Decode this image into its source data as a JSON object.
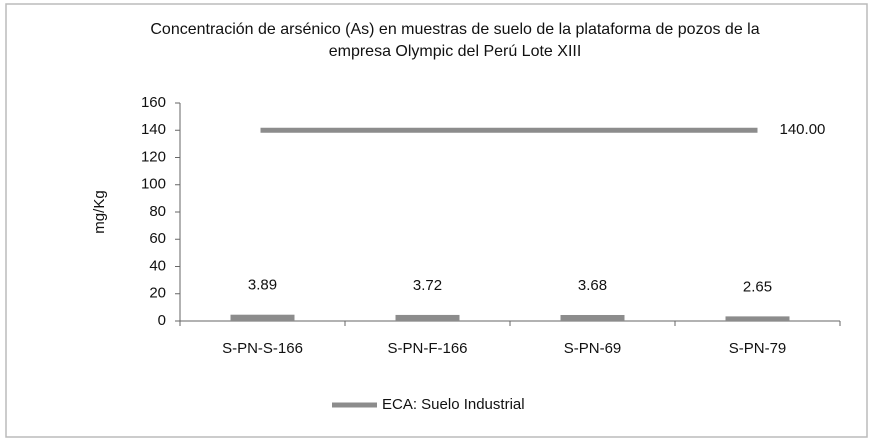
{
  "chart_data": {
    "type": "bar",
    "title": [
      "Concentración de arsénico (As) en muestras de suelo de la plataforma de pozos de la",
      "empresa Olympic del Perú Lote XIII"
    ],
    "y_label": "mg/Kg",
    "categories": [
      "S-PN-S-166",
      "S-PN-F-166",
      "S-PN-69",
      "S-PN-79"
    ],
    "series": [
      {
        "type": "bar",
        "color": "#8c8c8c",
        "values": [
          3.89,
          3.72,
          3.68,
          2.65
        ]
      },
      {
        "type": "line",
        "name": "ECA: Suelo Industrial",
        "color": "#8c8c8c",
        "values": [
          140,
          140,
          140,
          140
        ],
        "value_labels": [
          null,
          null,
          null,
          "140.00"
        ]
      }
    ],
    "ylim": [
      0,
      160
    ],
    "yticks": [
      0,
      20,
      40,
      60,
      80,
      100,
      120,
      140,
      160
    ],
    "legend": "bottom"
  }
}
